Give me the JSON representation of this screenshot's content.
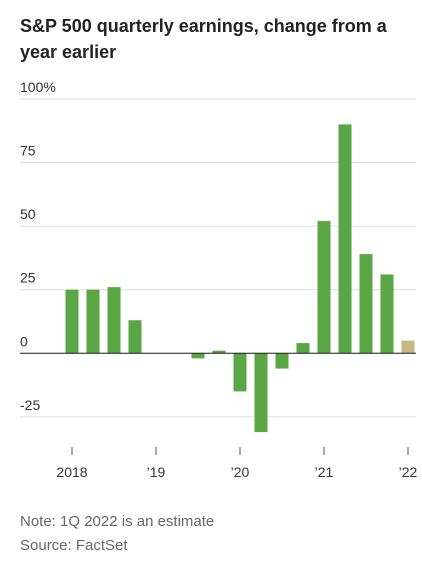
{
  "chart_data": {
    "type": "bar",
    "title": "S&P 500 quarterly earnings, change from a",
    "title_line2": "year earlier",
    "categories": [
      "2018",
      null,
      null,
      null,
      "’19",
      null,
      null,
      null,
      "’20",
      null,
      null,
      null,
      "’21",
      null,
      null,
      null,
      "’22"
    ],
    "values": [
      25,
      25,
      26,
      13,
      0,
      0,
      -2,
      1,
      -15,
      -31,
      -6,
      4,
      52,
      90,
      39,
      31,
      5
    ],
    "colors": [
      "#5aa544",
      "#5aa544",
      "#5aa544",
      "#5aa544",
      "#5aa544",
      "#5aa544",
      "#5aa544",
      "#5aa544",
      "#5aa544",
      "#5aa544",
      "#5aa544",
      "#5aa544",
      "#5aa544",
      "#5aa544",
      "#5aa544",
      "#5aa544",
      "#c6b985"
    ],
    "ylim": [
      -40,
      100
    ],
    "yticks": [
      -25,
      0,
      25,
      50,
      {
        "value": 100,
        "label": "100%"
      },
      75
    ],
    "grid": true,
    "note": "Note: 1Q 2022 is an estimate",
    "source": "Source: FactSet"
  }
}
